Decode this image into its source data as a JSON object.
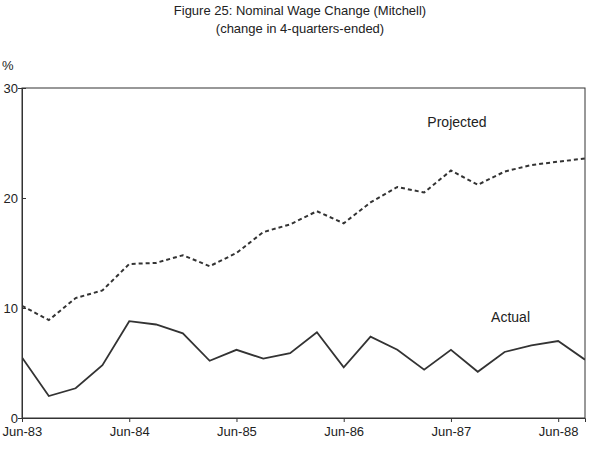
{
  "chart_data": {
    "type": "line",
    "title": "Figure 25: Nominal Wage Change (Mitchell)",
    "subtitle": "(change in 4-quarters-ended)",
    "y_label": "%",
    "categories": [
      "Jun-83",
      null,
      null,
      null,
      "Jun-84",
      null,
      null,
      null,
      "Jun-85",
      null,
      null,
      null,
      "Jun-86",
      null,
      null,
      null,
      "Jun-87",
      null,
      null,
      null,
      "Jun-88",
      null
    ],
    "series": [
      {
        "name": "Projected",
        "color": "#333333",
        "line_style": "dashed",
        "values": [
          10.2,
          8.9,
          10.9,
          11.6,
          14.0,
          14.1,
          14.8,
          13.8,
          15.0,
          16.9,
          17.6,
          18.8,
          17.7,
          19.6,
          21.0,
          20.5,
          22.5,
          21.2,
          22.4,
          23.0,
          23.3,
          23.6
        ]
      },
      {
        "name": "Actual",
        "color": "#333333",
        "line_style": "solid",
        "values": [
          5.5,
          2.0,
          2.7,
          4.8,
          8.8,
          8.5,
          7.7,
          5.2,
          6.2,
          5.4,
          5.9,
          7.8,
          4.6,
          7.4,
          6.2,
          4.4,
          6.2,
          4.2,
          6.0,
          6.6,
          7.0,
          5.3
        ]
      }
    ],
    "ylim": [
      0,
      30
    ],
    "yticks": [
      0,
      10,
      20,
      30
    ],
    "grid": false
  }
}
